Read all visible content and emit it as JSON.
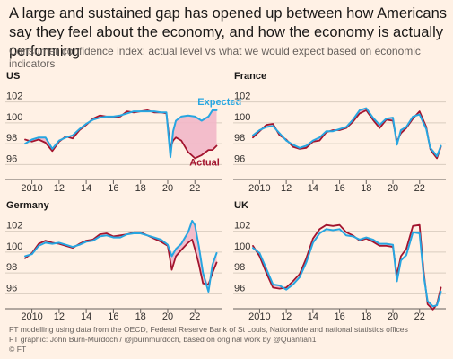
{
  "header": {
    "title": "A large and sustained gap has opened up between how Americans say they feel about the economy, and how the economy is actually performing",
    "subtitle": "Consumer confidence index: actual level vs what we would expect based on economic indicators"
  },
  "colors": {
    "expected": "#27a6e1",
    "actual": "#a3142e",
    "gap_fill": "#f2b7c8",
    "grid": "#d9ccbf",
    "axis": "#66605c",
    "background": "#fff1e5"
  },
  "footer": {
    "line1": "FT modelling using data from the OECD, Federal Reserve Bank of St Louis, Nationwide and national statistics offices",
    "line2": "FT graphic: John Burn-Murdoch / @jburnmurdoch, based on original work by @Quantian1",
    "line3": "© FT"
  },
  "chart_data": [
    {
      "type": "line",
      "title": "US",
      "xlim": [
        2009.5,
        2023.7
      ],
      "ylim": [
        95,
        103
      ],
      "x_ticks": [
        2010,
        2012,
        2014,
        2016,
        2018,
        2020,
        2022
      ],
      "x_tick_labels": [
        "2010",
        "12",
        "14",
        "16",
        "18",
        "20",
        "22"
      ],
      "y_ticks": [
        96,
        98,
        100,
        102
      ],
      "gap_shading": true,
      "series": [
        {
          "name": "Expected",
          "x": [
            2009.5,
            2010,
            2010.5,
            2011,
            2011.5,
            2012,
            2012.5,
            2013,
            2013.5,
            2014,
            2014.5,
            2015,
            2015.5,
            2016,
            2016.5,
            2017,
            2017.5,
            2018,
            2018.5,
            2019,
            2019.5,
            2019.9,
            2020.2,
            2020.4,
            2020.6,
            2021,
            2021.5,
            2022,
            2022.5,
            2023,
            2023.3,
            2023.6
          ],
          "values": [
            98.0,
            98.4,
            98.6,
            98.6,
            97.5,
            98.3,
            98.6,
            98.8,
            99.4,
            99.9,
            100.3,
            100.5,
            100.6,
            100.6,
            100.7,
            100.9,
            101.1,
            101.1,
            101.1,
            101.1,
            101.0,
            101.0,
            96.7,
            99.2,
            100.2,
            100.6,
            100.7,
            100.6,
            100.2,
            100.6,
            101.2,
            101.2
          ]
        },
        {
          "name": "Actual",
          "x": [
            2009.5,
            2010,
            2010.5,
            2011,
            2011.5,
            2012,
            2012.5,
            2013,
            2013.5,
            2014,
            2014.5,
            2015,
            2015.5,
            2016,
            2016.5,
            2017,
            2017.5,
            2018,
            2018.5,
            2019,
            2019.5,
            2019.9,
            2020.2,
            2020.4,
            2020.6,
            2021,
            2021.5,
            2022,
            2022.5,
            2023,
            2023.3,
            2023.6
          ],
          "values": [
            98.4,
            98.2,
            98.4,
            98.1,
            97.3,
            98.2,
            98.7,
            98.5,
            99.3,
            99.8,
            100.4,
            100.7,
            100.6,
            100.5,
            100.6,
            101.1,
            101.0,
            101.1,
            101.2,
            101.0,
            101.0,
            100.9,
            97.6,
            98.3,
            98.6,
            98.3,
            97.2,
            96.6,
            96.9,
            97.4,
            97.4,
            97.8
          ]
        }
      ],
      "annotations": [
        {
          "series": "Expected",
          "text": "Expected",
          "x": 2022.2,
          "y": 101.7
        },
        {
          "series": "Actual",
          "text": "Actual",
          "x": 2021.6,
          "y": 95.9
        }
      ]
    },
    {
      "type": "line",
      "title": "France",
      "xlim": [
        2009.5,
        2023.7
      ],
      "ylim": [
        95,
        103
      ],
      "x_ticks": [
        2010,
        2012,
        2014,
        2016,
        2018,
        2020,
        2022
      ],
      "x_tick_labels": [
        "2010",
        "12",
        "14",
        "16",
        "18",
        "20",
        "22"
      ],
      "y_ticks": [
        96,
        98,
        100,
        102
      ],
      "gap_shading": true,
      "series": [
        {
          "name": "Expected",
          "x": [
            2009.5,
            2010,
            2010.5,
            2011,
            2011.5,
            2012,
            2012.5,
            2013,
            2013.5,
            2014,
            2014.5,
            2015,
            2015.5,
            2016,
            2016.5,
            2017,
            2017.5,
            2018,
            2018.5,
            2019,
            2019.5,
            2020,
            2020.3,
            2020.6,
            2021,
            2021.5,
            2022,
            2022.5,
            2022.8,
            2023,
            2023.3,
            2023.6
          ],
          "values": [
            98.8,
            99.3,
            99.6,
            99.7,
            99.0,
            98.3,
            97.9,
            97.6,
            97.8,
            98.3,
            98.6,
            99.2,
            99.2,
            99.4,
            99.6,
            100.3,
            101.2,
            101.4,
            100.5,
            99.8,
            100.4,
            100.5,
            97.9,
            99.3,
            99.6,
            100.6,
            100.8,
            99.4,
            97.6,
            97.3,
            96.8,
            97.8
          ]
        },
        {
          "name": "Actual",
          "x": [
            2009.5,
            2010,
            2010.5,
            2011,
            2011.5,
            2012,
            2012.5,
            2013,
            2013.5,
            2014,
            2014.5,
            2015,
            2015.5,
            2016,
            2016.5,
            2017,
            2017.5,
            2018,
            2018.5,
            2019,
            2019.5,
            2020,
            2020.3,
            2020.6,
            2021,
            2021.5,
            2022,
            2022.5,
            2022.8,
            2023,
            2023.3,
            2023.6
          ],
          "values": [
            98.6,
            99.2,
            99.8,
            99.9,
            98.8,
            98.4,
            97.7,
            97.5,
            97.6,
            98.2,
            98.3,
            99.1,
            99.3,
            99.3,
            99.5,
            100.1,
            100.9,
            101.2,
            100.3,
            99.5,
            100.3,
            100.2,
            98.2,
            99.0,
            99.5,
            100.4,
            101.1,
            99.6,
            97.5,
            97.1,
            96.6,
            97.7
          ]
        }
      ]
    },
    {
      "type": "line",
      "title": "Germany",
      "xlim": [
        2009.5,
        2023.7
      ],
      "ylim": [
        95,
        103
      ],
      "x_ticks": [
        2010,
        2012,
        2014,
        2016,
        2018,
        2020,
        2022
      ],
      "x_tick_labels": [
        "2010",
        "12",
        "14",
        "16",
        "18",
        "20",
        "22"
      ],
      "y_ticks": [
        96,
        98,
        100,
        102
      ],
      "gap_shading": true,
      "series": [
        {
          "name": "Expected",
          "x": [
            2009.5,
            2010,
            2010.5,
            2011,
            2011.5,
            2012,
            2012.5,
            2013,
            2013.5,
            2014,
            2014.5,
            2015,
            2015.5,
            2016,
            2016.5,
            2017,
            2017.5,
            2018,
            2018.5,
            2019,
            2019.5,
            2020,
            2020.3,
            2020.6,
            2021,
            2021.5,
            2021.8,
            2022,
            2022.3,
            2022.6,
            2023,
            2023.3,
            2023.6
          ],
          "values": [
            99.6,
            99.8,
            100.6,
            100.9,
            100.8,
            100.9,
            100.7,
            100.5,
            100.7,
            101.0,
            101.1,
            101.5,
            101.6,
            101.4,
            101.4,
            101.7,
            101.8,
            101.8,
            101.6,
            101.4,
            101.2,
            100.7,
            99.6,
            100.3,
            100.8,
            101.9,
            103.0,
            102.6,
            100.5,
            98.0,
            96.2,
            98.8,
            99.9
          ]
        },
        {
          "name": "Actual",
          "x": [
            2009.5,
            2010,
            2010.5,
            2011,
            2011.5,
            2012,
            2012.5,
            2013,
            2013.5,
            2014,
            2014.5,
            2015,
            2015.5,
            2016,
            2016.5,
            2017,
            2017.5,
            2018,
            2018.5,
            2019,
            2019.5,
            2020,
            2020.3,
            2020.6,
            2021,
            2021.5,
            2021.8,
            2022,
            2022.3,
            2022.6,
            2023,
            2023.3,
            2023.6
          ],
          "values": [
            99.4,
            99.9,
            100.8,
            101.1,
            100.9,
            100.8,
            100.6,
            100.4,
            100.8,
            101.1,
            101.2,
            101.7,
            101.8,
            101.5,
            101.6,
            101.7,
            101.9,
            101.9,
            101.6,
            101.3,
            101.0,
            100.6,
            98.3,
            99.6,
            100.2,
            100.9,
            101.2,
            100.3,
            98.8,
            97.0,
            96.9,
            98.0,
            99.0
          ]
        }
      ]
    },
    {
      "type": "line",
      "title": "UK",
      "xlim": [
        2009.5,
        2023.7
      ],
      "ylim": [
        95,
        103
      ],
      "x_ticks": [
        2010,
        2012,
        2014,
        2016,
        2018,
        2020,
        2022
      ],
      "x_tick_labels": [
        "2010",
        "12",
        "14",
        "16",
        "18",
        "20",
        "22"
      ],
      "y_ticks": [
        96,
        98,
        100,
        102
      ],
      "gap_shading": true,
      "series": [
        {
          "name": "Expected",
          "x": [
            2009.5,
            2010,
            2010.5,
            2011,
            2011.5,
            2012,
            2012.5,
            2013,
            2013.5,
            2014,
            2014.5,
            2015,
            2015.5,
            2016,
            2016.5,
            2017,
            2017.5,
            2018,
            2018.5,
            2019,
            2019.5,
            2020,
            2020.3,
            2020.6,
            2021,
            2021.5,
            2022,
            2022.3,
            2022.6,
            2023,
            2023.3,
            2023.6
          ],
          "values": [
            100.4,
            99.9,
            98.4,
            96.9,
            96.8,
            96.4,
            96.9,
            97.6,
            99.0,
            100.9,
            101.8,
            102.2,
            102.1,
            102.2,
            101.6,
            101.5,
            101.2,
            101.4,
            101.2,
            100.8,
            100.8,
            100.7,
            97.2,
            99.2,
            99.7,
            101.9,
            101.8,
            97.8,
            95.3,
            94.8,
            94.9,
            96.2
          ]
        },
        {
          "name": "Actual",
          "x": [
            2009.5,
            2010,
            2010.5,
            2011,
            2011.5,
            2012,
            2012.5,
            2013,
            2013.5,
            2014,
            2014.5,
            2015,
            2015.5,
            2016,
            2016.5,
            2017,
            2017.5,
            2018,
            2018.5,
            2019,
            2019.5,
            2020,
            2020.3,
            2020.6,
            2021,
            2021.5,
            2022,
            2022.3,
            2022.6,
            2023,
            2023.3,
            2023.6
          ],
          "values": [
            100.6,
            99.6,
            98.0,
            96.6,
            96.5,
            96.6,
            97.2,
            97.9,
            99.4,
            101.3,
            102.2,
            102.6,
            102.5,
            102.6,
            101.9,
            101.6,
            101.1,
            101.3,
            101.0,
            100.6,
            100.6,
            100.5,
            97.8,
            99.6,
            100.3,
            102.5,
            102.6,
            98.2,
            95.0,
            94.5,
            95.0,
            96.6
          ]
        }
      ]
    }
  ]
}
